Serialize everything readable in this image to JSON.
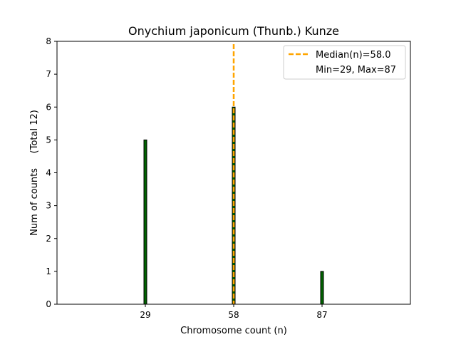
{
  "colors": {
    "bar_fill": "#006400",
    "bar_edge": "#000000",
    "median_line": "#FFA500",
    "axis": "#000000",
    "background": "#ffffff"
  },
  "chart_data": {
    "type": "bar",
    "title": "Onychium japonicum (Thunb.) Kunze",
    "xlabel": "Chromosome count (n)",
    "ylabel": "Num of counts     (Total 12)",
    "xlim": [
      0,
      116
    ],
    "ylim": [
      0,
      8
    ],
    "x_ticks": [
      29,
      58,
      87
    ],
    "y_ticks": [
      0,
      1,
      2,
      3,
      4,
      5,
      6,
      7,
      8
    ],
    "bars": [
      {
        "x": 29,
        "value": 5
      },
      {
        "x": 58,
        "value": 6
      },
      {
        "x": 87,
        "value": 1
      }
    ],
    "median": 58.0,
    "legend": {
      "position": "top-right",
      "entries": [
        "Median(n)=58.0",
        "Min=29, Max=87"
      ]
    },
    "grid": false
  }
}
